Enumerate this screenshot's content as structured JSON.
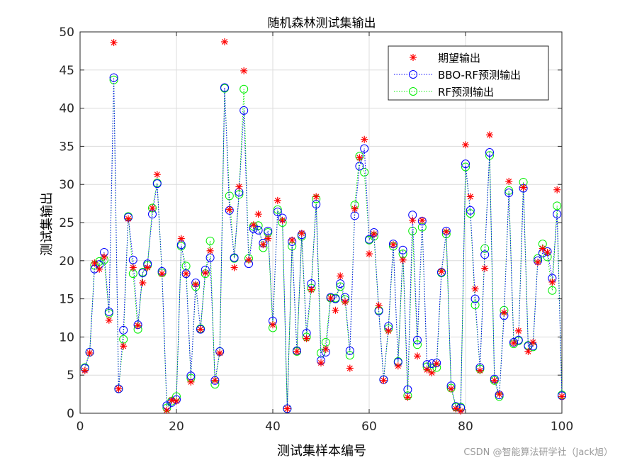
{
  "watermark": "CSDN @智能算法研学社（Jack旭）",
  "chart_data": {
    "type": "line",
    "title": "随机森林测试集输出",
    "xlabel": "测试集样本编号",
    "ylabel": "测试集输出",
    "xlim": [
      0,
      100
    ],
    "ylim": [
      0,
      50
    ],
    "xticks": [
      0,
      20,
      40,
      60,
      80,
      100
    ],
    "yticks": [
      0,
      5,
      10,
      15,
      20,
      25,
      30,
      35,
      40,
      45,
      50
    ],
    "grid": true,
    "legend_position": "top-right",
    "x": [
      1,
      2,
      3,
      4,
      5,
      6,
      7,
      8,
      9,
      10,
      11,
      12,
      13,
      14,
      15,
      16,
      17,
      18,
      19,
      20,
      21,
      22,
      23,
      24,
      25,
      26,
      27,
      28,
      29,
      30,
      31,
      32,
      33,
      34,
      35,
      36,
      37,
      38,
      39,
      40,
      41,
      42,
      43,
      44,
      45,
      46,
      47,
      48,
      49,
      50,
      51,
      52,
      53,
      54,
      55,
      56,
      57,
      58,
      59,
      60,
      61,
      62,
      63,
      64,
      65,
      66,
      67,
      68,
      69,
      70,
      71,
      72,
      73,
      74,
      75,
      76,
      77,
      78,
      79,
      80,
      81,
      82,
      83,
      84,
      85,
      86,
      87,
      88,
      89,
      90,
      91,
      92,
      93,
      94,
      95,
      96,
      97,
      98,
      99,
      100
    ],
    "series": [
      {
        "name": "期望输出",
        "color": "#ff0000",
        "marker": "asterisk",
        "line": false,
        "values": [
          5.6,
          7.9,
          19.7,
          18.9,
          20.5,
          12.2,
          48.6,
          3.2,
          8.8,
          25.5,
          19.1,
          11.5,
          17.1,
          19.1,
          26.9,
          31.3,
          18.3,
          0.4,
          1.7,
          1.6,
          22.9,
          18.3,
          4.1,
          16.9,
          11.0,
          18.4,
          21.3,
          4.3,
          7.9,
          48.7,
          26.7,
          19.1,
          29.7,
          44.9,
          20.1,
          24.7,
          26.1,
          22.1,
          22.9,
          11.6,
          27.9,
          25.3,
          0.6,
          22.7,
          8.1,
          23.6,
          9.8,
          16.2,
          28.4,
          6.6,
          8.4,
          15.1,
          13.5,
          18.0,
          14.6,
          5.9,
          26.8,
          33.5,
          35.9,
          20.9,
          23.5,
          14.1,
          4.3,
          10.8,
          22.1,
          6.2,
          20.1,
          2.1,
          25.3,
          7.5,
          25.3,
          5.7,
          5.3,
          6.5,
          18.6,
          23.8,
          3.2,
          0.6,
          0.3,
          35.2,
          28.4,
          16.3,
          5.6,
          19.0,
          36.5,
          4.3,
          2.5,
          13.2,
          30.4,
          9.2,
          10.8,
          29.6,
          8.1,
          9.3,
          19.8,
          21.6,
          21.1,
          17.2,
          29.3,
          2.2
        ]
      },
      {
        "name": "BBO-RF预测输出",
        "color": "#0000ff",
        "marker": "circle",
        "line": true,
        "values": [
          5.9,
          8.0,
          18.9,
          19.5,
          21.1,
          13.3,
          44.0,
          3.2,
          10.9,
          25.7,
          20.1,
          11.6,
          18.4,
          19.6,
          26.1,
          30.1,
          18.6,
          1.0,
          1.4,
          1.8,
          22.1,
          18.3,
          4.9,
          17.1,
          11.0,
          18.8,
          20.4,
          4.3,
          8.1,
          42.7,
          26.6,
          20.4,
          29.0,
          39.7,
          19.6,
          24.2,
          24.0,
          22.3,
          23.9,
          12.1,
          26.4,
          25.6,
          0.6,
          22.5,
          8.2,
          23.4,
          10.5,
          17.0,
          27.4,
          6.9,
          8.0,
          15.2,
          15.0,
          17.0,
          15.2,
          8.2,
          25.9,
          32.4,
          34.7,
          22.8,
          23.7,
          13.4,
          4.4,
          11.4,
          22.2,
          6.7,
          21.4,
          3.1,
          26.0,
          9.6,
          25.2,
          6.4,
          6.5,
          6.6,
          18.5,
          23.9,
          3.6,
          0.9,
          0.7,
          32.7,
          26.6,
          15.0,
          6.0,
          20.8,
          34.2,
          4.5,
          2.4,
          12.8,
          28.9,
          9.3,
          9.6,
          29.5,
          8.8,
          8.8,
          20.0,
          21.0,
          21.2,
          17.7,
          26.1,
          2.3
        ]
      },
      {
        "name": "RF预测输出",
        "color": "#00ee00",
        "marker": "circle",
        "line": true,
        "values": [
          6.0,
          8.0,
          19.4,
          19.9,
          20.1,
          13.1,
          43.7,
          3.2,
          9.7,
          25.8,
          18.3,
          11.0,
          18.5,
          19.4,
          26.9,
          30.2,
          18.4,
          0.7,
          1.6,
          2.2,
          21.9,
          19.3,
          4.6,
          16.6,
          11.1,
          18.3,
          22.6,
          3.8,
          8.1,
          42.6,
          28.5,
          20.3,
          28.7,
          42.5,
          20.3,
          24.5,
          24.6,
          21.7,
          23.7,
          11.2,
          26.7,
          25.0,
          0.6,
          21.9,
          8.1,
          23.2,
          10.0,
          16.4,
          28.1,
          7.9,
          9.3,
          15.1,
          15.1,
          16.6,
          14.9,
          7.6,
          27.3,
          33.7,
          31.6,
          22.7,
          23.2,
          13.5,
          4.4,
          11.1,
          21.9,
          6.8,
          20.9,
          2.3,
          23.9,
          9.0,
          24.4,
          6.1,
          5.9,
          6.0,
          18.4,
          23.5,
          3.3,
          0.8,
          0.8,
          32.3,
          26.2,
          14.2,
          5.8,
          21.6,
          33.8,
          4.3,
          2.2,
          13.5,
          29.2,
          9.1,
          9.5,
          30.3,
          8.9,
          8.7,
          20.3,
          22.2,
          20.5,
          16.1,
          27.2,
          2.4
        ]
      }
    ]
  }
}
